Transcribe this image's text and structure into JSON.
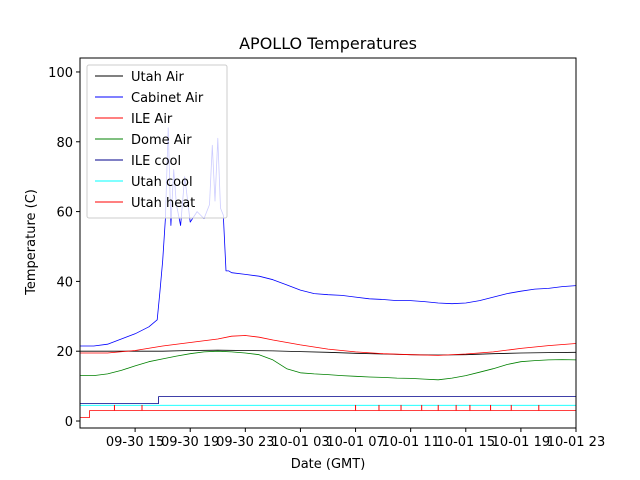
{
  "chart_data": {
    "type": "line",
    "title": "APOLLO Temperatures",
    "xlabel": "Date (GMT)",
    "ylabel": "Temperature (C)",
    "x_unit": "hours since 2017-09-30 11:00 GMT",
    "xlim": [
      0,
      36
    ],
    "ylim": [
      -2,
      104
    ],
    "yticks": [
      0,
      20,
      40,
      60,
      80,
      100
    ],
    "xticks": [
      {
        "x": 4,
        "label": "09-30 15"
      },
      {
        "x": 8,
        "label": "09-30 19"
      },
      {
        "x": 12,
        "label": "09-30 23"
      },
      {
        "x": 16,
        "label": "10-01 03"
      },
      {
        "x": 20,
        "label": "10-01 07"
      },
      {
        "x": 24,
        "label": "10-01 11"
      },
      {
        "x": 28,
        "label": "10-01 15"
      },
      {
        "x": 32,
        "label": "10-01 19"
      },
      {
        "x": 36,
        "label": "10-01 23"
      }
    ],
    "legend_position": "top-left",
    "series": [
      {
        "name": "Utah Air",
        "color": "#000000",
        "x": [
          0,
          2,
          4,
          6,
          8,
          10,
          12,
          14,
          16,
          18,
          20,
          22,
          24,
          26,
          28,
          30,
          32,
          34,
          36
        ],
        "y": [
          20,
          20,
          20,
          20,
          20.2,
          20.3,
          20.2,
          20.1,
          19.9,
          19.7,
          19.4,
          19.2,
          19.0,
          18.9,
          19.0,
          19.3,
          19.5,
          19.6,
          19.7
        ]
      },
      {
        "name": "Cabinet Air",
        "color": "#0000ff",
        "x": [
          0,
          1,
          2,
          3,
          4,
          5,
          5.6,
          5.8,
          6.0,
          6.2,
          6.4,
          6.6,
          6.8,
          7.0,
          7.3,
          7.6,
          8.0,
          8.5,
          9.0,
          9.4,
          9.6,
          9.8,
          10.0,
          10.2,
          10.4,
          10.6,
          10.8,
          11.0,
          12,
          13,
          14,
          15,
          16,
          17,
          18,
          19,
          20,
          21,
          22,
          23,
          24,
          25,
          26,
          27,
          28,
          29,
          30,
          31,
          32,
          33,
          34,
          35,
          36
        ],
        "y": [
          21.5,
          21.5,
          22,
          23.5,
          25,
          27,
          29,
          37,
          46,
          58,
          84,
          56,
          72,
          62,
          56,
          70,
          57,
          60,
          58,
          62,
          79,
          63,
          81,
          61,
          59,
          43,
          43,
          42.5,
          42,
          41.5,
          40.5,
          39,
          37.5,
          36.5,
          36.2,
          36,
          35.5,
          35,
          34.8,
          34.5,
          34.5,
          34.2,
          33.8,
          33.6,
          33.8,
          34.5,
          35.5,
          36.5,
          37.2,
          37.8,
          38,
          38.5,
          38.8
        ]
      },
      {
        "name": "ILE Air",
        "color": "#ff0000",
        "x": [
          0,
          2,
          4,
          6,
          8,
          10,
          11,
          12,
          13,
          14,
          16,
          18,
          20,
          22,
          24,
          26,
          28,
          30,
          32,
          34,
          36
        ],
        "y": [
          19.5,
          19.5,
          20.2,
          21.5,
          22.5,
          23.5,
          24.3,
          24.5,
          24.0,
          23.2,
          21.8,
          20.6,
          19.8,
          19.3,
          19.0,
          18.8,
          19.2,
          19.8,
          20.8,
          21.6,
          22.2
        ]
      },
      {
        "name": "Dome Air",
        "color": "#008000",
        "x": [
          0,
          1,
          2,
          3,
          4,
          5,
          6,
          7,
          8,
          9,
          10,
          11,
          12,
          13,
          14,
          15,
          16,
          17,
          18,
          19,
          20,
          21,
          22,
          23,
          24,
          25,
          26,
          27,
          28,
          29,
          30,
          31,
          32,
          33,
          34,
          35,
          36
        ],
        "y": [
          13,
          13,
          13.5,
          14.5,
          15.8,
          17,
          17.8,
          18.6,
          19.3,
          19.8,
          20,
          19.8,
          19.5,
          19,
          17.5,
          15,
          13.8,
          13.5,
          13.3,
          13,
          12.8,
          12.6,
          12.5,
          12.3,
          12.2,
          12.0,
          11.8,
          12.3,
          13,
          14,
          15,
          16.2,
          17.0,
          17.3,
          17.5,
          17.6,
          17.5
        ]
      },
      {
        "name": "ILE cool",
        "color": "#00008b",
        "x": [
          0,
          5.7,
          5.7,
          36
        ],
        "y": [
          5,
          5,
          7,
          7
        ]
      },
      {
        "name": "Utah cool",
        "color": "#00ffff",
        "x": [
          0,
          36
        ],
        "y": [
          4.5,
          4.5
        ]
      },
      {
        "name": "Utah heat",
        "color": "#ff0000",
        "x": [
          0,
          0.7,
          0.7,
          36
        ],
        "y": [
          1,
          1,
          3,
          3
        ],
        "spikes_x": [
          2.5,
          4.5,
          20.0,
          21.7,
          23.3,
          24.8,
          26.0,
          27.3,
          28.3,
          29.8,
          31.3,
          33.3
        ]
      }
    ]
  }
}
